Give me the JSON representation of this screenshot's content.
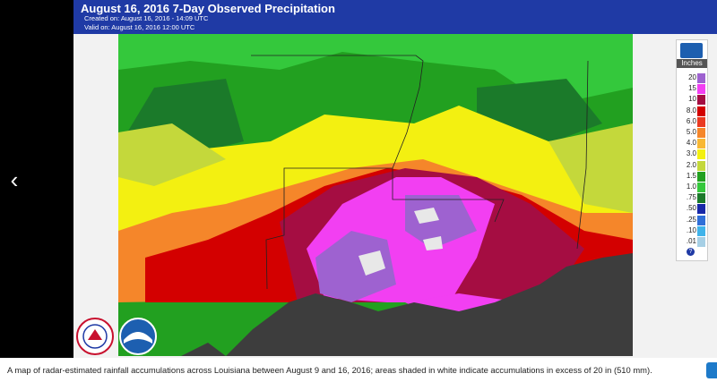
{
  "header": {
    "title": "August 16, 2016 7-Day Observed Precipitation",
    "created": "Created on: August 16, 2016 - 14:09 UTC",
    "valid": "Valid on: August 16, 2016 12:00 UTC"
  },
  "legend": {
    "units": "Inches",
    "help_glyph": "?",
    "items": [
      {
        "label": "20",
        "color": "#9e62d0"
      },
      {
        "label": "15",
        "color": "#f23ff2"
      },
      {
        "label": "10",
        "color": "#a50d42"
      },
      {
        "label": "8.0",
        "color": "#d30000"
      },
      {
        "label": "6.0",
        "color": "#ea3a22"
      },
      {
        "label": "5.0",
        "color": "#f5862a"
      },
      {
        "label": "4.0",
        "color": "#f8b834"
      },
      {
        "label": "3.0",
        "color": "#f3f011"
      },
      {
        "label": "2.0",
        "color": "#c4d83b"
      },
      {
        "label": "1.5",
        "color": "#22a020"
      },
      {
        "label": "1.0",
        "color": "#34c83c"
      },
      {
        "label": ".75",
        "color": "#1b7a2a"
      },
      {
        "label": ".50",
        "color": "#1828a8"
      },
      {
        "label": ".25",
        "color": "#2f6fd8"
      },
      {
        "label": ".10",
        "color": "#3fb3ea"
      },
      {
        "label": ".01",
        "color": "#a6cfe5"
      }
    ]
  },
  "navigation": {
    "prev_glyph": "‹"
  },
  "caption": {
    "text": "A map of radar-estimated rainfall accumulations across Louisiana between August 9 and 16, 2016; areas shaded in white indicate accumulations in excess of 20 in (510 mm)."
  },
  "colors": {
    "header_bg": "#1f3aa5",
    "gulf": "#3d3d3d",
    "white_area": "#e8e8e8"
  }
}
